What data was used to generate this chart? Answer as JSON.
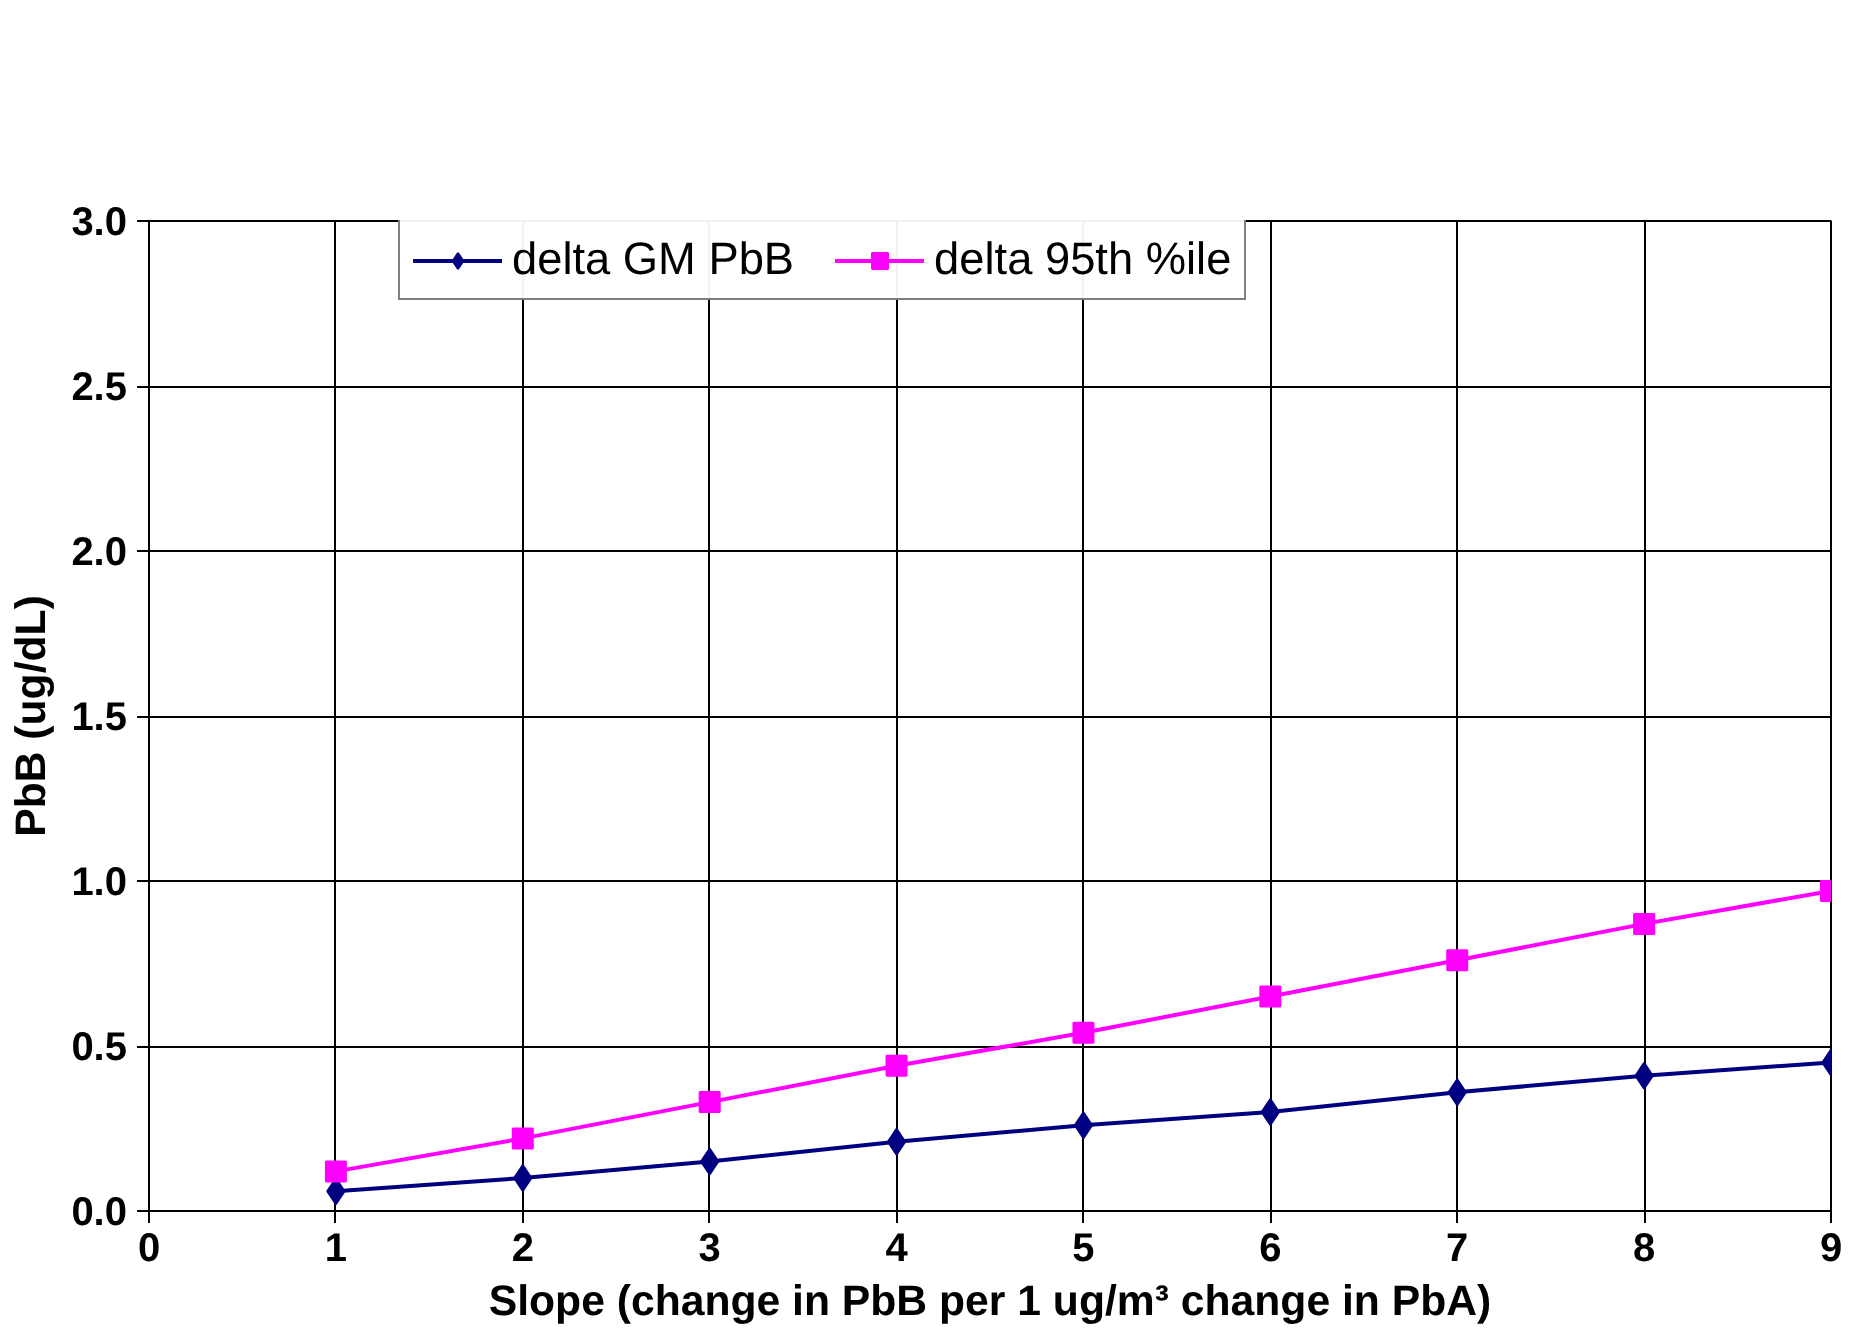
{
  "chart_data": {
    "type": "line",
    "xlabel": "Slope (change in PbB per 1 ug/m³ change in PbA)",
    "ylabel": "PbB (ug/dL)",
    "x": [
      1,
      2,
      3,
      4,
      5,
      6,
      7,
      8,
      9
    ],
    "series": [
      {
        "name": "delta GM PbB",
        "color": "#000080",
        "marker": "diamond",
        "values": [
          0.06,
          0.1,
          0.15,
          0.21,
          0.26,
          0.3,
          0.36,
          0.41,
          0.45
        ]
      },
      {
        "name": "delta 95th %ile",
        "color": "#ff00ff",
        "marker": "square",
        "values": [
          0.12,
          0.22,
          0.33,
          0.44,
          0.54,
          0.65,
          0.76,
          0.87,
          0.97
        ]
      }
    ],
    "xlim": [
      0,
      9
    ],
    "ylim": [
      0,
      3
    ],
    "xticks": [
      0,
      1,
      2,
      3,
      4,
      5,
      6,
      7,
      8,
      9
    ],
    "yticks": [
      {
        "value": 0,
        "label": "0.0"
      },
      {
        "value": 0.5,
        "label": "0.5"
      },
      {
        "value": 1,
        "label": "1.0"
      },
      {
        "value": 1.5,
        "label": "1.5"
      },
      {
        "value": 2,
        "label": "2.0"
      },
      {
        "value": 2.5,
        "label": "2.5"
      },
      {
        "value": 3,
        "label": "3.0"
      }
    ],
    "grid": true,
    "legend": "top",
    "line_style": "solid"
  }
}
